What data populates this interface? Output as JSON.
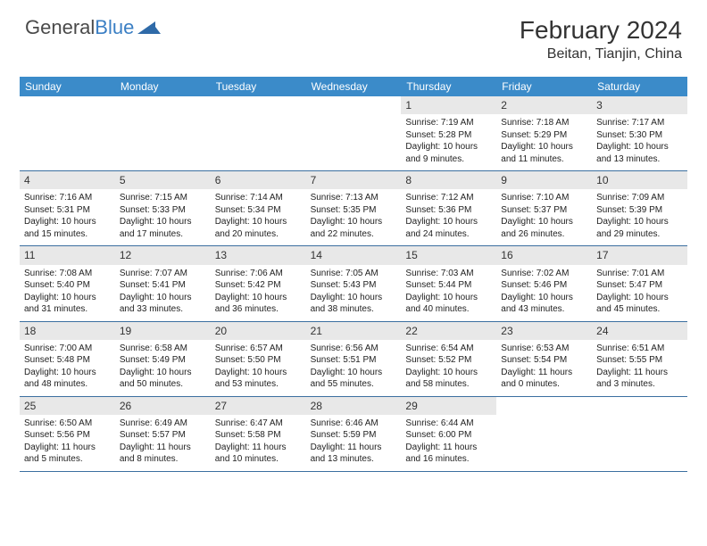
{
  "logo": {
    "text1": "General",
    "text2": "Blue"
  },
  "title": "February 2024",
  "location": "Beitan, Tianjin, China",
  "colors": {
    "header_bg": "#3b8bc9",
    "header_text": "#ffffff",
    "daynum_bg": "#e8e8e8",
    "border": "#3b6fa0",
    "body_text": "#222222",
    "title_text": "#333333",
    "logo_gray": "#4a4a4a",
    "logo_blue": "#3b7fc4",
    "background": "#ffffff"
  },
  "fonts": {
    "title_size_pt": 21,
    "location_size_pt": 12,
    "dayheader_size_pt": 9,
    "daynum_size_pt": 9,
    "cell_size_pt": 7.5
  },
  "day_names": [
    "Sunday",
    "Monday",
    "Tuesday",
    "Wednesday",
    "Thursday",
    "Friday",
    "Saturday"
  ],
  "weeks": [
    [
      null,
      null,
      null,
      null,
      {
        "n": "1",
        "sunrise": "Sunrise: 7:19 AM",
        "sunset": "Sunset: 5:28 PM",
        "day": "Daylight: 10 hours and 9 minutes."
      },
      {
        "n": "2",
        "sunrise": "Sunrise: 7:18 AM",
        "sunset": "Sunset: 5:29 PM",
        "day": "Daylight: 10 hours and 11 minutes."
      },
      {
        "n": "3",
        "sunrise": "Sunrise: 7:17 AM",
        "sunset": "Sunset: 5:30 PM",
        "day": "Daylight: 10 hours and 13 minutes."
      }
    ],
    [
      {
        "n": "4",
        "sunrise": "Sunrise: 7:16 AM",
        "sunset": "Sunset: 5:31 PM",
        "day": "Daylight: 10 hours and 15 minutes."
      },
      {
        "n": "5",
        "sunrise": "Sunrise: 7:15 AM",
        "sunset": "Sunset: 5:33 PM",
        "day": "Daylight: 10 hours and 17 minutes."
      },
      {
        "n": "6",
        "sunrise": "Sunrise: 7:14 AM",
        "sunset": "Sunset: 5:34 PM",
        "day": "Daylight: 10 hours and 20 minutes."
      },
      {
        "n": "7",
        "sunrise": "Sunrise: 7:13 AM",
        "sunset": "Sunset: 5:35 PM",
        "day": "Daylight: 10 hours and 22 minutes."
      },
      {
        "n": "8",
        "sunrise": "Sunrise: 7:12 AM",
        "sunset": "Sunset: 5:36 PM",
        "day": "Daylight: 10 hours and 24 minutes."
      },
      {
        "n": "9",
        "sunrise": "Sunrise: 7:10 AM",
        "sunset": "Sunset: 5:37 PM",
        "day": "Daylight: 10 hours and 26 minutes."
      },
      {
        "n": "10",
        "sunrise": "Sunrise: 7:09 AM",
        "sunset": "Sunset: 5:39 PM",
        "day": "Daylight: 10 hours and 29 minutes."
      }
    ],
    [
      {
        "n": "11",
        "sunrise": "Sunrise: 7:08 AM",
        "sunset": "Sunset: 5:40 PM",
        "day": "Daylight: 10 hours and 31 minutes."
      },
      {
        "n": "12",
        "sunrise": "Sunrise: 7:07 AM",
        "sunset": "Sunset: 5:41 PM",
        "day": "Daylight: 10 hours and 33 minutes."
      },
      {
        "n": "13",
        "sunrise": "Sunrise: 7:06 AM",
        "sunset": "Sunset: 5:42 PM",
        "day": "Daylight: 10 hours and 36 minutes."
      },
      {
        "n": "14",
        "sunrise": "Sunrise: 7:05 AM",
        "sunset": "Sunset: 5:43 PM",
        "day": "Daylight: 10 hours and 38 minutes."
      },
      {
        "n": "15",
        "sunrise": "Sunrise: 7:03 AM",
        "sunset": "Sunset: 5:44 PM",
        "day": "Daylight: 10 hours and 40 minutes."
      },
      {
        "n": "16",
        "sunrise": "Sunrise: 7:02 AM",
        "sunset": "Sunset: 5:46 PM",
        "day": "Daylight: 10 hours and 43 minutes."
      },
      {
        "n": "17",
        "sunrise": "Sunrise: 7:01 AM",
        "sunset": "Sunset: 5:47 PM",
        "day": "Daylight: 10 hours and 45 minutes."
      }
    ],
    [
      {
        "n": "18",
        "sunrise": "Sunrise: 7:00 AM",
        "sunset": "Sunset: 5:48 PM",
        "day": "Daylight: 10 hours and 48 minutes."
      },
      {
        "n": "19",
        "sunrise": "Sunrise: 6:58 AM",
        "sunset": "Sunset: 5:49 PM",
        "day": "Daylight: 10 hours and 50 minutes."
      },
      {
        "n": "20",
        "sunrise": "Sunrise: 6:57 AM",
        "sunset": "Sunset: 5:50 PM",
        "day": "Daylight: 10 hours and 53 minutes."
      },
      {
        "n": "21",
        "sunrise": "Sunrise: 6:56 AM",
        "sunset": "Sunset: 5:51 PM",
        "day": "Daylight: 10 hours and 55 minutes."
      },
      {
        "n": "22",
        "sunrise": "Sunrise: 6:54 AM",
        "sunset": "Sunset: 5:52 PM",
        "day": "Daylight: 10 hours and 58 minutes."
      },
      {
        "n": "23",
        "sunrise": "Sunrise: 6:53 AM",
        "sunset": "Sunset: 5:54 PM",
        "day": "Daylight: 11 hours and 0 minutes."
      },
      {
        "n": "24",
        "sunrise": "Sunrise: 6:51 AM",
        "sunset": "Sunset: 5:55 PM",
        "day": "Daylight: 11 hours and 3 minutes."
      }
    ],
    [
      {
        "n": "25",
        "sunrise": "Sunrise: 6:50 AM",
        "sunset": "Sunset: 5:56 PM",
        "day": "Daylight: 11 hours and 5 minutes."
      },
      {
        "n": "26",
        "sunrise": "Sunrise: 6:49 AM",
        "sunset": "Sunset: 5:57 PM",
        "day": "Daylight: 11 hours and 8 minutes."
      },
      {
        "n": "27",
        "sunrise": "Sunrise: 6:47 AM",
        "sunset": "Sunset: 5:58 PM",
        "day": "Daylight: 11 hours and 10 minutes."
      },
      {
        "n": "28",
        "sunrise": "Sunrise: 6:46 AM",
        "sunset": "Sunset: 5:59 PM",
        "day": "Daylight: 11 hours and 13 minutes."
      },
      {
        "n": "29",
        "sunrise": "Sunrise: 6:44 AM",
        "sunset": "Sunset: 6:00 PM",
        "day": "Daylight: 11 hours and 16 minutes."
      },
      null,
      null
    ]
  ]
}
